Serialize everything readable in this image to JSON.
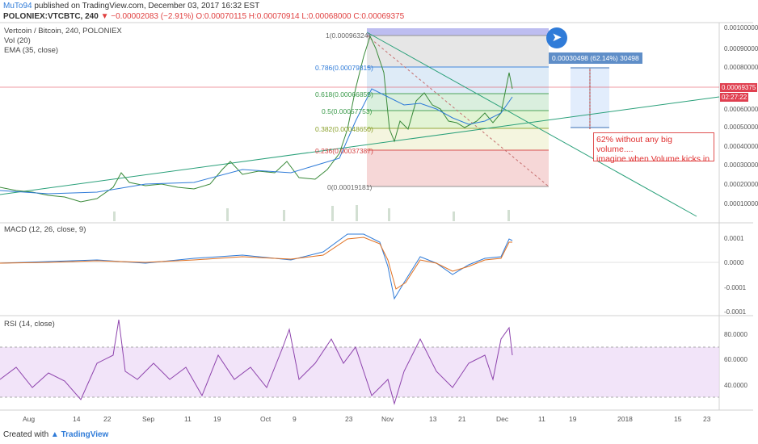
{
  "header": {
    "author": "MuTo94",
    "published": "published on TradingView.com, December 03, 2017 16:32 EST",
    "symbol": "POLONIEX:VTCBTC, 240",
    "change": "▼ −0.00002083 (−2.91%)",
    "ohlc": "O:0.00070115 H:0.00070914 L:0.00068000 C:0.00069375"
  },
  "main_pane": {
    "title": "Vertcoin / Bitcoin, 240, POLONIEX",
    "vol": "Vol (20)",
    "ema": "EMA (35, close)",
    "yaxis": [
      "0.00100000",
      "0.00090000",
      "0.00080000",
      "0.00070000",
      "0.00060000",
      "0.00050000",
      "0.00040000",
      "0.00030000",
      "0.00020000",
      "0.00010000"
    ],
    "last_price": "0.00069375",
    "countdown": "02:27:22"
  },
  "fib_levels": [
    {
      "label": "1(0.00096324)",
      "color": "#666666"
    },
    {
      "label": "0.786(0.00079815)",
      "color": "#2f7bd8"
    },
    {
      "label": "0.618(0.00066855)",
      "color": "#3a9a4a"
    },
    {
      "label": "0.5(0.00057753)",
      "color": "#3a9a4a"
    },
    {
      "label": "0.382(0.00048650)",
      "color": "#8aa02a"
    },
    {
      "label": "0.236(0.00037387)",
      "color": "#d44040"
    },
    {
      "label": "0(0.00019181)",
      "color": "#666666"
    }
  ],
  "annotations": {
    "measure": "0.00030498 (62.14%) 30498",
    "note_line1": "62% without any big volume....",
    "note_line2": "imagine when Volume kicks in",
    "rocket": "rocket-icon"
  },
  "macd_pane": {
    "title": "MACD (12, 26, close, 9)",
    "yaxis": [
      "0.0001",
      "0.0000",
      "-0.0001",
      "-0.0001"
    ]
  },
  "rsi_pane": {
    "title": "RSI (14, close)",
    "yaxis": [
      "80.0000",
      "60.0000",
      "40.0000"
    ]
  },
  "xaxis": [
    "Aug",
    "14",
    "22",
    "Sep",
    "11",
    "19",
    "Oct",
    "9",
    "23",
    "Nov",
    "13",
    "21",
    "Dec",
    "11",
    "19",
    "2018",
    "15",
    "23"
  ],
  "footer": {
    "created": "Created with",
    "brand": "TradingView"
  },
  "colors": {
    "accent": "#2f7bd8",
    "price": "#e04050",
    "ema": "#3a8a3a",
    "trend": "#2aa07a",
    "rsi": "#8e44ad"
  }
}
